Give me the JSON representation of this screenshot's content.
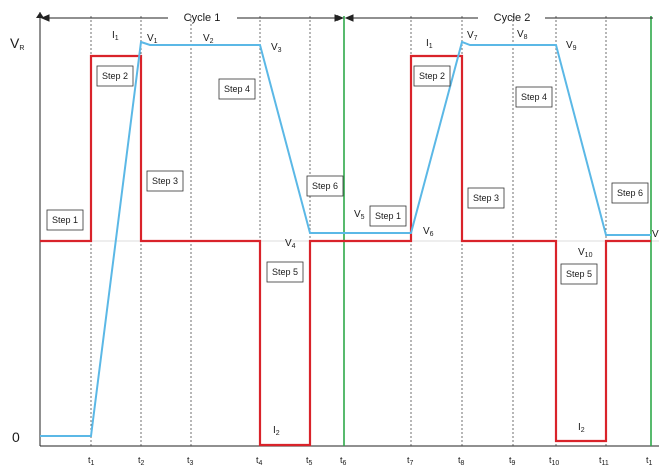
{
  "axis": {
    "y_top": "V",
    "y_top_sub": "R",
    "y_zero": "0"
  },
  "cycles": [
    {
      "label": "Cycle 1"
    },
    {
      "label": "Cycle 2"
    }
  ],
  "time_labels": [
    {
      "main": "t",
      "sub": "1"
    },
    {
      "main": "t",
      "sub": "2"
    },
    {
      "main": "t",
      "sub": "3"
    },
    {
      "main": "t",
      "sub": "4"
    },
    {
      "main": "t",
      "sub": "5"
    },
    {
      "main": "t",
      "sub": "6"
    },
    {
      "main": "t",
      "sub": "7"
    },
    {
      "main": "t",
      "sub": "8"
    },
    {
      "main": "t",
      "sub": "9"
    },
    {
      "main": "t",
      "sub": "10"
    },
    {
      "main": "t",
      "sub": "11"
    },
    {
      "main": "t",
      "sub": "1"
    }
  ],
  "step_boxes": [
    {
      "label": "Step 1"
    },
    {
      "label": "Step 2"
    },
    {
      "label": "Step 3"
    },
    {
      "label": "Step 4"
    },
    {
      "label": "Step 5"
    },
    {
      "label": "Step 6"
    },
    {
      "label": "Step 1"
    },
    {
      "label": "Step 2"
    },
    {
      "label": "Step 3"
    },
    {
      "label": "Step 4"
    },
    {
      "label": "Step 5"
    },
    {
      "label": "Step 6"
    }
  ],
  "voltage_labels": [
    {
      "main": "V",
      "sub": "1"
    },
    {
      "main": "V",
      "sub": "2"
    },
    {
      "main": "V",
      "sub": "3"
    },
    {
      "main": "V",
      "sub": "4"
    },
    {
      "main": "V",
      "sub": "5"
    },
    {
      "main": "V",
      "sub": "6"
    },
    {
      "main": "V",
      "sub": "7"
    },
    {
      "main": "V",
      "sub": "8"
    },
    {
      "main": "V",
      "sub": "9"
    },
    {
      "main": "V",
      "sub": "10"
    },
    {
      "main": "V",
      "sub": ""
    }
  ],
  "current_labels": [
    {
      "main": "I",
      "sub": "1"
    },
    {
      "main": "I",
      "sub": "2"
    },
    {
      "main": "I",
      "sub": "1"
    },
    {
      "main": "I",
      "sub": "2"
    }
  ],
  "colors": {
    "current_trace": "#d9232a",
    "voltage_trace": "#5bb8e6",
    "cycle_boundary": "#2ea84a",
    "guide": "#333333"
  }
}
